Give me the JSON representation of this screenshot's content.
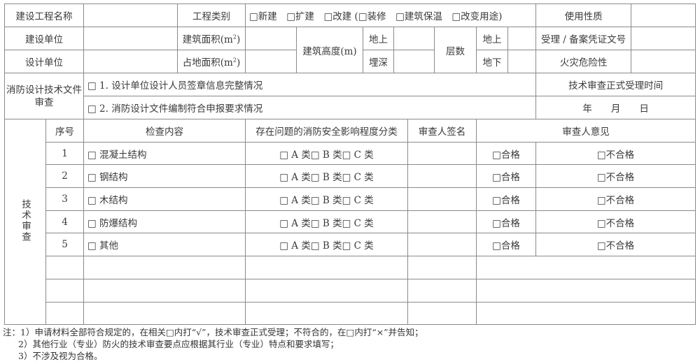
{
  "top": {
    "project_name_label": "建设工程名称",
    "project_type_label": "工程类别",
    "project_type_options": "□新建　□扩建　□改建 (□装修　□建筑保温　□改变用途)",
    "use_nature_label": "使用性质",
    "builder_label": "建设单位",
    "building_area_label": "建筑面积(m²)",
    "building_height_label": "建筑高度(m)",
    "above_ground": "地上",
    "floors_label": "层数",
    "above_ground_floors": "地上",
    "permit_no_label": "受理 / 备案凭证文号",
    "designer_label": "设计单位",
    "land_area_label": "占地面积(m²)",
    "buried_depth": "埋深",
    "below_ground_floors": "地下",
    "fire_risk_label": "火灾危险性",
    "doc_review_label": "消防设计技术文件审查",
    "doc_item_1": "□ 1. 设计单位设计人员签章信息完整情况",
    "doc_item_2": "□ 2. 消防设计文件编制符合申报要求情况",
    "accept_time_label": "技术审查正式受理时间",
    "date_text": "年　　月　　日"
  },
  "review": {
    "section_label": "技术审查",
    "headers": [
      "序号",
      "检查内容",
      "存在问题的消防安全影响程度分类",
      "审查人签名",
      "审查人意见"
    ],
    "rows": [
      {
        "no": "1",
        "content": "□ 混凝土结构",
        "category": "□ A 类□ B 类□ C 类",
        "pass": "□合格",
        "fail": "□不合格"
      },
      {
        "no": "2",
        "content": "□ 钢结构",
        "category": "□ A 类□ B 类□ C 类",
        "pass": "□合格",
        "fail": "□不合格"
      },
      {
        "no": "3",
        "content": "□ 木结构",
        "category": "□ A 类□ B 类□ C 类",
        "pass": "□合格",
        "fail": "□不合格"
      },
      {
        "no": "4",
        "content": "□ 防爆结构",
        "category": "□ A 类□ B 类□ C 类",
        "pass": "□合格",
        "fail": "□不合格"
      },
      {
        "no": "5",
        "content": "□ 其他",
        "category": "□ A 类□ B 类□ C 类",
        "pass": "□合格",
        "fail": "□不合格"
      }
    ]
  },
  "notes": [
    "注：1）申请材料全部符合规定的，在相关□内打“√”，技术审查正式受理；不符合的，在□内打“×”并告知；",
    "2）其他行业（专业）防火的技术审查要点应根据其行业（专业）特点和要求填写；",
    "3）不涉及视为合格。"
  ]
}
